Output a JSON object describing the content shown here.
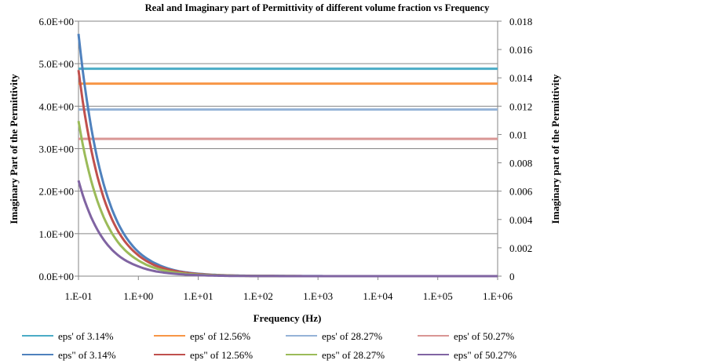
{
  "chart_data": {
    "type": "line",
    "title": "Real and Imaginary part of  Permittivity of different volume fraction vs Frequency",
    "xlabel": "Frequency (Hz)",
    "ylabel": "Imaginary  Part of the Permittivity",
    "y2label": "Imaginary part of the Permittivity",
    "xscale": "log",
    "xlim": [
      0.1,
      1000000
    ],
    "ylim": [
      0,
      6
    ],
    "y2lim": [
      0,
      0.018
    ],
    "x_ticks": [
      "1.E-01",
      "1.E+00",
      "1.E+01",
      "1.E+02",
      "1.E+03",
      "1.E+04",
      "1.E+05",
      "1.E+06"
    ],
    "y_ticks": [
      "0.0E+00",
      "1.0E+00",
      "2.0E+00",
      "3.0E+00",
      "4.0E+00",
      "5.0E+00",
      "6.0E+00"
    ],
    "y2_ticks": [
      "0",
      "0.002",
      "0.004",
      "0.006",
      "0.008",
      "0.01",
      "0.012",
      "0.014",
      "0.016",
      "0.018"
    ],
    "grid": "horizontal",
    "legend": "bottom",
    "x": [
      0.1,
      0.2,
      0.5,
      1,
      2,
      5,
      10,
      100,
      1000,
      10000,
      100000,
      1000000
    ],
    "series": [
      {
        "name": "eps' of 3.14%",
        "color": "#4bacc6",
        "axis": "left",
        "values": [
          4.88,
          4.88,
          4.88,
          4.88,
          4.88,
          4.88,
          4.88,
          4.88,
          4.88,
          4.88,
          4.88,
          4.88
        ]
      },
      {
        "name": "eps' of 12.56%",
        "color": "#f79646",
        "axis": "left",
        "values": [
          4.53,
          4.53,
          4.53,
          4.53,
          4.53,
          4.53,
          4.53,
          4.53,
          4.53,
          4.53,
          4.53,
          4.53
        ]
      },
      {
        "name": "eps' of 28.27%",
        "color": "#95b3d7",
        "axis": "left",
        "values": [
          3.92,
          3.92,
          3.92,
          3.92,
          3.92,
          3.92,
          3.92,
          3.92,
          3.92,
          3.92,
          3.92,
          3.92
        ]
      },
      {
        "name": "eps' of 50.27%",
        "color": "#d99694",
        "axis": "left",
        "values": [
          3.23,
          3.23,
          3.23,
          3.23,
          3.23,
          3.23,
          3.23,
          3.23,
          3.23,
          3.23,
          3.23,
          3.23
        ]
      },
      {
        "name": "eps\" of 3.14%",
        "color": "#4f81bd",
        "axis": "left",
        "values": [
          5.7,
          2.85,
          1.14,
          0.57,
          0.29,
          0.11,
          0.057,
          0.006,
          0.001,
          0,
          0,
          0
        ]
      },
      {
        "name": "eps\" of 12.56%",
        "color": "#c0504d",
        "axis": "left",
        "values": [
          4.85,
          2.43,
          0.97,
          0.49,
          0.24,
          0.1,
          0.049,
          0.005,
          0.0005,
          0,
          0,
          0
        ]
      },
      {
        "name": "eps\" of 28.27%",
        "color": "#9bbb59",
        "axis": "left",
        "values": [
          3.65,
          1.83,
          0.73,
          0.37,
          0.18,
          0.07,
          0.037,
          0.004,
          0.0004,
          0,
          0,
          0
        ]
      },
      {
        "name": "eps\" of 50.27%",
        "color": "#8064a2",
        "axis": "left",
        "values": [
          2.25,
          1.13,
          0.45,
          0.23,
          0.11,
          0.045,
          0.023,
          0.002,
          0.0002,
          0,
          0,
          0
        ]
      }
    ]
  }
}
